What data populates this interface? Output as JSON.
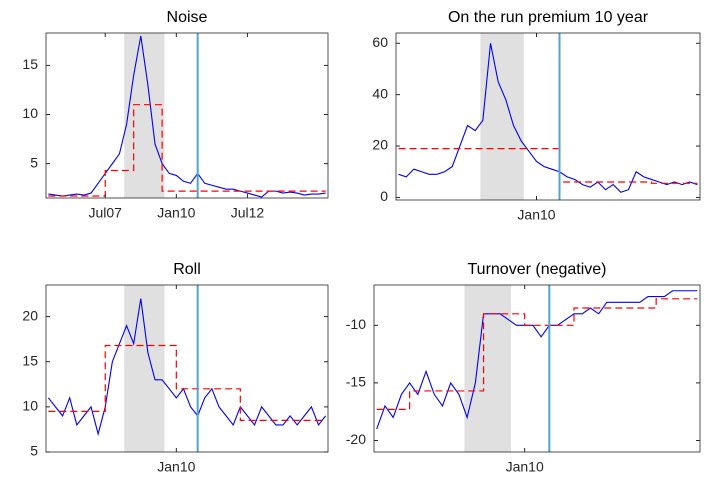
{
  "chart_data": [
    {
      "type": "line",
      "title": "Noise",
      "x": [
        "2005-07",
        "2005-10",
        "2006-01",
        "2006-04",
        "2006-07",
        "2006-10",
        "2007-01",
        "2007-04",
        "2007-07",
        "2007-10",
        "2008-01",
        "2008-04",
        "2008-07",
        "2008-10",
        "2009-01",
        "2009-04",
        "2009-07",
        "2009-10",
        "2010-01",
        "2010-04",
        "2010-07",
        "2010-10",
        "2011-01",
        "2011-04",
        "2011-07",
        "2011-10",
        "2012-01",
        "2012-04",
        "2012-07",
        "2012-10",
        "2013-01",
        "2013-04",
        "2013-07",
        "2013-10",
        "2014-01",
        "2014-04",
        "2014-07",
        "2014-10",
        "2015-01",
        "2015-04"
      ],
      "series": [
        {
          "color": "#0000ff",
          "style": "solid",
          "values": [
            1.9,
            1.8,
            1.7,
            1.8,
            1.9,
            1.8,
            2.0,
            3.0,
            4.0,
            5.0,
            6.0,
            9.0,
            14.0,
            18.0,
            13.0,
            7.0,
            5.0,
            4.0,
            3.8,
            3.2,
            3.0,
            4.0,
            3.0,
            2.8,
            2.6,
            2.4,
            2.4,
            2.2,
            2.0,
            1.8,
            1.6,
            2.2,
            2.2,
            2.0,
            2.1,
            2.0,
            1.8,
            1.9,
            1.9,
            2.0
          ]
        },
        {
          "color": "#ff0000",
          "style": "dashed",
          "step": true,
          "values": [
            1.7,
            1.7,
            1.7,
            1.7,
            1.7,
            1.7,
            1.7,
            1.7,
            4.3,
            4.3,
            4.3,
            4.3,
            11,
            11,
            11,
            11,
            2.2,
            2.2,
            2.2,
            2.2,
            2.2,
            2.2,
            2.2,
            2.2,
            2.2,
            2.2,
            2.2,
            2.2,
            2.2,
            2.2,
            2.2,
            2.2,
            2.2,
            2.2,
            2.2,
            2.2,
            2.2,
            2.2,
            2.2,
            2.2
          ]
        }
      ],
      "xlim": [
        "2005-06",
        "2015-05"
      ],
      "xticks": [
        {
          "value": "2007-07",
          "label": "Jul07"
        },
        {
          "value": "2010-01",
          "label": "Jan10"
        },
        {
          "value": "2012-07",
          "label": "Jul12"
        }
      ],
      "ylim": [
        1.5,
        18.3
      ],
      "yticks": [
        5,
        10,
        15
      ],
      "shaded_range": [
        "2008-03",
        "2009-08"
      ],
      "shade_color": "#e0e0e0",
      "vline": "2010-10",
      "vline_color": "#4da6d8"
    },
    {
      "type": "line",
      "title": "On the run premium 10 year",
      "x": [
        "2005-07",
        "2005-10",
        "2006-01",
        "2006-04",
        "2006-07",
        "2006-10",
        "2007-01",
        "2007-04",
        "2007-07",
        "2007-10",
        "2008-01",
        "2008-04",
        "2008-07",
        "2008-10",
        "2009-01",
        "2009-04",
        "2009-07",
        "2009-10",
        "2010-01",
        "2010-04",
        "2010-07",
        "2010-10",
        "2011-01",
        "2011-04",
        "2011-07",
        "2011-10",
        "2012-01",
        "2012-04",
        "2012-07",
        "2012-10",
        "2013-01",
        "2013-04",
        "2013-07",
        "2013-10",
        "2014-01",
        "2014-04",
        "2014-07",
        "2014-10",
        "2015-01",
        "2015-04"
      ],
      "series": [
        {
          "color": "#0000ff",
          "style": "solid",
          "values": [
            9,
            8,
            11,
            10,
            9,
            9,
            10,
            12,
            20,
            28,
            26,
            30,
            60,
            45,
            38,
            28,
            22,
            18,
            14,
            12,
            11,
            10,
            8,
            7,
            5,
            4,
            6,
            3,
            5,
            2,
            3,
            10,
            8,
            7,
            6,
            5,
            6,
            5,
            6,
            5
          ]
        },
        {
          "color": "#ff0000",
          "style": "dashed",
          "step": true,
          "values": [
            19,
            19,
            19,
            19,
            19,
            19,
            19,
            19,
            19,
            19,
            19,
            19,
            19,
            19,
            19,
            19,
            19,
            19,
            19,
            19,
            19,
            6,
            6,
            6,
            6,
            6,
            6,
            6,
            6,
            6,
            6,
            6,
            6,
            5.5,
            5.5,
            5.5,
            5.5,
            5.5,
            5.5,
            5.5
          ]
        }
      ],
      "xlim": [
        "2005-06",
        "2015-05"
      ],
      "xticks": [
        {
          "value": "2010-01",
          "label": "Jan10"
        }
      ],
      "ylim": [
        -1,
        64
      ],
      "yticks": [
        0,
        20,
        40,
        60
      ],
      "shaded_range": [
        "2008-03",
        "2009-08"
      ],
      "shade_color": "#e0e0e0",
      "vline": "2010-10",
      "vline_color": "#4da6d8"
    },
    {
      "type": "line",
      "title": "Roll",
      "x": [
        "2005-07",
        "2005-10",
        "2006-01",
        "2006-04",
        "2006-07",
        "2006-10",
        "2007-01",
        "2007-04",
        "2007-07",
        "2007-10",
        "2008-01",
        "2008-04",
        "2008-07",
        "2008-10",
        "2009-01",
        "2009-04",
        "2009-07",
        "2009-10",
        "2010-01",
        "2010-04",
        "2010-07",
        "2010-10",
        "2011-01",
        "2011-04",
        "2011-07",
        "2011-10",
        "2012-01",
        "2012-04",
        "2012-07",
        "2012-10",
        "2013-01",
        "2013-04",
        "2013-07",
        "2013-10",
        "2014-01",
        "2014-04",
        "2014-07",
        "2014-10",
        "2015-01",
        "2015-04"
      ],
      "series": [
        {
          "color": "#0000ff",
          "style": "solid",
          "values": [
            11,
            10,
            9,
            11,
            8,
            9,
            10,
            7,
            10,
            15,
            17,
            19,
            17,
            22,
            16,
            13,
            13,
            12,
            11,
            12,
            10,
            9,
            11,
            12,
            10,
            9,
            8,
            10,
            9,
            8,
            10,
            9,
            8,
            8,
            9,
            8,
            9,
            10,
            8,
            9
          ]
        },
        {
          "color": "#ff0000",
          "style": "dashed",
          "step": true,
          "values": [
            9.5,
            9.5,
            9.5,
            9.5,
            9.5,
            9.5,
            9.5,
            9.5,
            16.8,
            16.8,
            16.8,
            16.8,
            16.8,
            16.8,
            16.8,
            16.8,
            16.8,
            16.8,
            12,
            12,
            12,
            12,
            12,
            12,
            12,
            12,
            12,
            8.5,
            8.5,
            8.5,
            8.5,
            8.5,
            8.5,
            8.5,
            8.5,
            8.5,
            8.5,
            8.5,
            8.5,
            8.5
          ]
        }
      ],
      "xlim": [
        "2005-06",
        "2015-05"
      ],
      "xticks": [
        {
          "value": "2010-01",
          "label": "Jan10"
        }
      ],
      "ylim": [
        5,
        23.5
      ],
      "yticks": [
        5,
        10,
        15,
        20
      ],
      "shaded_range": [
        "2008-03",
        "2009-08"
      ],
      "shade_color": "#e0e0e0",
      "vline": "2010-10",
      "vline_color": "#4da6d8"
    },
    {
      "type": "line",
      "title": "Turnover (negative)",
      "x": [
        "2005-07",
        "2005-10",
        "2006-01",
        "2006-04",
        "2006-07",
        "2006-10",
        "2007-01",
        "2007-04",
        "2007-07",
        "2007-10",
        "2008-01",
        "2008-04",
        "2008-07",
        "2008-10",
        "2009-01",
        "2009-04",
        "2009-07",
        "2009-10",
        "2010-01",
        "2010-04",
        "2010-07",
        "2010-10",
        "2011-01",
        "2011-04",
        "2011-07",
        "2011-10",
        "2012-01",
        "2012-04",
        "2012-07",
        "2012-10",
        "2013-01",
        "2013-04",
        "2013-07",
        "2013-10",
        "2014-01",
        "2014-04",
        "2014-07",
        "2014-10",
        "2015-01",
        "2015-04"
      ],
      "series": [
        {
          "color": "#0000ff",
          "style": "solid",
          "values": [
            -19,
            -17,
            -18,
            -16,
            -15,
            -16,
            -14,
            -16,
            -17,
            -15,
            -16,
            -18,
            -15,
            -9,
            -9,
            -9,
            -9.5,
            -10,
            -10,
            -10,
            -11,
            -10,
            -10,
            -9.5,
            -9,
            -9,
            -8.5,
            -9,
            -8,
            -8,
            -8,
            -8,
            -8,
            -7.5,
            -7.5,
            -7.5,
            -7,
            -7,
            -7,
            -7
          ]
        },
        {
          "color": "#ff0000",
          "style": "dashed",
          "step": true,
          "values": [
            -17.3,
            -17.3,
            -17.3,
            -17.3,
            -15.7,
            -15.7,
            -15.7,
            -15.7,
            -15.7,
            -15.7,
            -15.7,
            -15.7,
            -15.7,
            -9,
            -9,
            -9,
            -9,
            -9,
            -10,
            -10,
            -10,
            -10,
            -10,
            -10,
            -8.5,
            -8.5,
            -8.5,
            -8.5,
            -8.5,
            -8.5,
            -8.5,
            -8.5,
            -8.5,
            -8.5,
            -7.7,
            -7.7,
            -7.7,
            -7.7,
            -7.7,
            -7.7
          ]
        }
      ],
      "xlim": [
        "2005-06",
        "2015-05"
      ],
      "xticks": [
        {
          "value": "2010-01",
          "label": "Jan10"
        }
      ],
      "ylim": [
        -21,
        -6.5
      ],
      "yticks": [
        -20,
        -15,
        -10
      ],
      "shaded_range": [
        "2008-03",
        "2009-08"
      ],
      "shade_color": "#e0e0e0",
      "vline": "2010-10",
      "vline_color": "#4da6d8"
    }
  ]
}
